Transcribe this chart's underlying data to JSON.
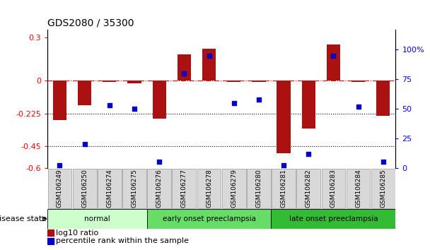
{
  "title": "GDS2080 / 35300",
  "samples": [
    "GSM106249",
    "GSM106250",
    "GSM106274",
    "GSM106275",
    "GSM106276",
    "GSM106277",
    "GSM106278",
    "GSM106279",
    "GSM106280",
    "GSM106281",
    "GSM106282",
    "GSM106283",
    "GSM106284",
    "GSM106285"
  ],
  "log10_ratio": [
    -0.27,
    -0.17,
    -0.01,
    -0.02,
    -0.26,
    0.18,
    0.22,
    -0.01,
    -0.01,
    -0.5,
    -0.33,
    0.25,
    -0.01,
    -0.24
  ],
  "percentile_rank": [
    2,
    20,
    53,
    50,
    5,
    80,
    95,
    55,
    58,
    2,
    12,
    95,
    52,
    5
  ],
  "groups": [
    {
      "label": "normal",
      "start": 0,
      "end": 4,
      "color": "#ccffcc"
    },
    {
      "label": "early onset preeclampsia",
      "start": 4,
      "end": 9,
      "color": "#66dd66"
    },
    {
      "label": "late onset preeclampsia",
      "start": 9,
      "end": 14,
      "color": "#33bb33"
    }
  ],
  "ylim_left": [
    -0.6,
    0.35
  ],
  "ylim_right": [
    0,
    116.67
  ],
  "yticks_left": [
    -0.6,
    -0.45,
    -0.225,
    0,
    0.3
  ],
  "ytick_labels_left": [
    "-0.6",
    "-0.45",
    "-0.225",
    "0",
    "0.3"
  ],
  "yticks_right": [
    0,
    25,
    50,
    75,
    100
  ],
  "ytick_labels_right": [
    "0",
    "25",
    "50",
    "75",
    "100%"
  ],
  "hlines": [
    0,
    -0.225,
    -0.45
  ],
  "hline_styles": [
    "dash-dot",
    "dotted",
    "dotted"
  ],
  "bar_color": "#aa1111",
  "dot_color": "#0000cc",
  "bar_width": 0.55,
  "figsize": [
    6.08,
    3.54
  ],
  "dpi": 100
}
